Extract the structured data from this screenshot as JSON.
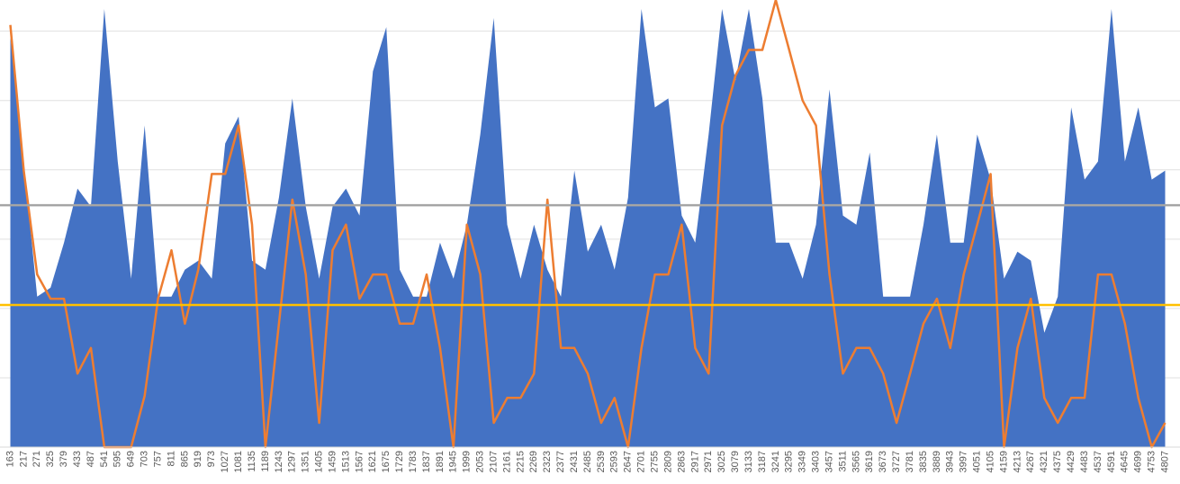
{
  "chart_data": {
    "type": "combo",
    "categories": [
      "163",
      "217",
      "271",
      "325",
      "379",
      "433",
      "487",
      "541",
      "595",
      "649",
      "703",
      "757",
      "811",
      "865",
      "919",
      "973",
      "1027",
      "1081",
      "1135",
      "1189",
      "1243",
      "1297",
      "1351",
      "1405",
      "1459",
      "1513",
      "1567",
      "1621",
      "1675",
      "1729",
      "1783",
      "1837",
      "1891",
      "1945",
      "1999",
      "2053",
      "2107",
      "2161",
      "2215",
      "2269",
      "2323",
      "2377",
      "2431",
      "2485",
      "2539",
      "2593",
      "2647",
      "2701",
      "2755",
      "2809",
      "2863",
      "2917",
      "2971",
      "3025",
      "3079",
      "3133",
      "3187",
      "3241",
      "3295",
      "3349",
      "3403",
      "3457",
      "3511",
      "3565",
      "3619",
      "3673",
      "3727",
      "3781",
      "3835",
      "3889",
      "3943",
      "3997",
      "4051",
      "4105",
      "4159",
      "4213",
      "4267",
      "4321",
      "4375",
      "4429",
      "4483",
      "4537",
      "4591",
      "4645",
      "4699",
      "4753",
      "4807"
    ],
    "series": [
      {
        "kind": "area",
        "color": "#4472c4",
        "values": [
          593,
          412,
          217,
          230,
          295,
          373,
          347,
          632,
          412,
          243,
          464,
          217,
          217,
          256,
          269,
          243,
          438,
          477,
          269,
          256,
          360,
          503,
          347,
          243,
          347,
          373,
          334,
          542,
          606,
          256,
          217,
          217,
          295,
          243,
          321,
          451,
          619,
          321,
          243,
          321,
          256,
          217,
          399,
          282,
          321,
          256,
          360,
          632,
          490,
          503,
          334,
          295,
          451,
          632,
          529,
          632,
          503,
          295,
          295,
          243,
          321,
          516,
          334,
          321,
          425,
          217,
          217,
          217,
          321,
          451,
          295,
          295,
          451,
          386,
          243,
          282,
          269,
          165,
          217,
          490,
          386,
          412,
          632,
          412,
          490,
          386,
          399
        ]
      },
      {
        "kind": "line",
        "color": "#ed7d31",
        "values": [
          609,
          399,
          249,
          214,
          214,
          106,
          143,
          0,
          0,
          0,
          74,
          214,
          284,
          178,
          256,
          394,
          394,
          464,
          321,
          0,
          178,
          357,
          249,
          35,
          284,
          321,
          214,
          249,
          249,
          178,
          178,
          249,
          143,
          0,
          321,
          249,
          35,
          71,
          71,
          106,
          357,
          143,
          143,
          106,
          35,
          71,
          0,
          143,
          249,
          249,
          321,
          143,
          106,
          464,
          536,
          573,
          573,
          645,
          573,
          500,
          464,
          249,
          106,
          143,
          143,
          106,
          35,
          106,
          178,
          214,
          143,
          249,
          321,
          394,
          0,
          143,
          214,
          71,
          35,
          71,
          71,
          249,
          249,
          178,
          71,
          0,
          35
        ]
      }
    ],
    "hlines": [
      {
        "value": 349,
        "color": "#a5a5a5"
      },
      {
        "value": 205,
        "color": "#ffc000"
      }
    ],
    "ylim": [
      0,
      645
    ],
    "yticks": [
      0,
      100,
      200,
      300,
      400,
      500,
      600
    ],
    "grid": true
  }
}
